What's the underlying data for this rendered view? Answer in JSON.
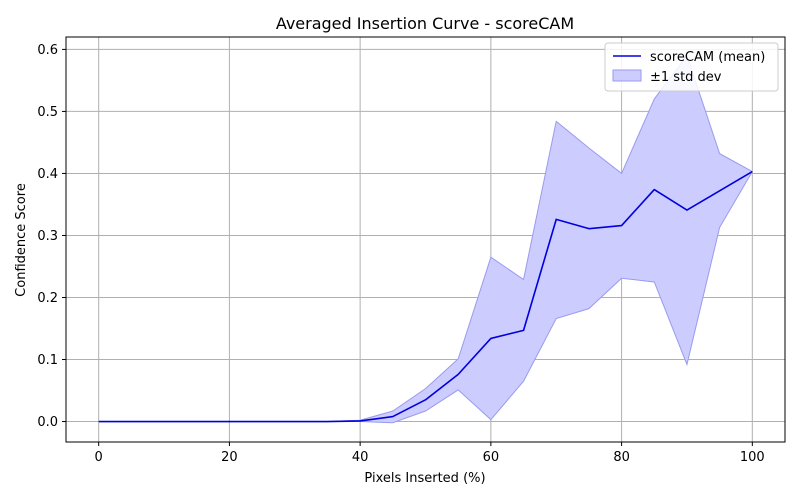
{
  "chart_data": {
    "type": "line",
    "title": "Averaged Insertion Curve - scoreCAM",
    "xlabel": "Pixels Inserted (%)",
    "ylabel": "Confidence Score",
    "xlim": [
      -5,
      105
    ],
    "ylim": [
      -0.033,
      0.62
    ],
    "xticks": [
      0,
      20,
      40,
      60,
      80,
      100
    ],
    "yticks": [
      0.0,
      0.1,
      0.2,
      0.3,
      0.4,
      0.5,
      0.6
    ],
    "xtick_labels": [
      "0",
      "20",
      "40",
      "60",
      "80",
      "100"
    ],
    "ytick_labels": [
      "0.0",
      "0.1",
      "0.2",
      "0.3",
      "0.4",
      "0.5",
      "0.6"
    ],
    "grid": true,
    "legend_position": "top-right",
    "x": [
      0,
      5,
      10,
      15,
      20,
      25,
      30,
      35,
      40,
      45,
      50,
      55,
      60,
      65,
      70,
      75,
      80,
      85,
      90,
      95,
      100
    ],
    "series": [
      {
        "name": "scoreCAM (mean)",
        "color": "#0000dd",
        "values": [
          0.0,
          0.0,
          0.0,
          0.0,
          0.0,
          0.0,
          0.0,
          0.0,
          0.001,
          0.008,
          0.035,
          0.076,
          0.134,
          0.147,
          0.326,
          0.311,
          0.316,
          0.374,
          0.341,
          0.372,
          0.403
        ]
      }
    ],
    "band": {
      "name": "±1 std dev",
      "color": "#ccccff",
      "edge_color": "#9a9aee",
      "upper": [
        0.0,
        0.0,
        0.0,
        0.0,
        0.0,
        0.0,
        0.0,
        0.0,
        0.002,
        0.017,
        0.053,
        0.101,
        0.265,
        0.229,
        0.484,
        0.441,
        0.4,
        0.52,
        0.59,
        0.432,
        0.403
      ],
      "lower": [
        0.0,
        0.0,
        0.0,
        0.0,
        0.0,
        0.0,
        0.0,
        0.0,
        0.0,
        -0.002,
        0.017,
        0.051,
        0.003,
        0.065,
        0.166,
        0.182,
        0.231,
        0.225,
        0.092,
        0.313,
        0.403
      ]
    }
  }
}
